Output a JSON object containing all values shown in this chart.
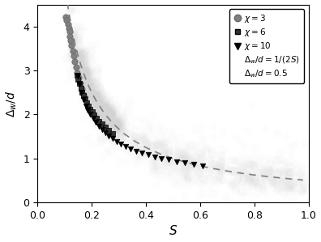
{
  "xlabel": "S",
  "ylabel": "$\\Delta_w/d$",
  "xlim": [
    0,
    1.0
  ],
  "ylim": [
    0,
    4.5
  ],
  "xticks": [
    0,
    0.2,
    0.4,
    0.6,
    0.8,
    1.0
  ],
  "yticks": [
    0,
    1,
    2,
    3,
    4
  ],
  "chi3_S": [
    0.105,
    0.108,
    0.112,
    0.115,
    0.118,
    0.12,
    0.123,
    0.126,
    0.13,
    0.134,
    0.138,
    0.142,
    0.147,
    0.152,
    0.157,
    0.163,
    0.169
  ],
  "chi3_Y": [
    4.22,
    4.14,
    4.05,
    3.96,
    3.88,
    3.78,
    3.68,
    3.57,
    3.45,
    3.33,
    3.2,
    3.08,
    2.95,
    2.83,
    2.7,
    2.57,
    2.45
  ],
  "chi6_S": [
    0.145,
    0.15,
    0.155,
    0.16,
    0.165,
    0.17,
    0.176,
    0.182,
    0.188,
    0.195,
    0.202,
    0.21,
    0.218,
    0.228,
    0.238,
    0.25,
    0.263,
    0.278
  ],
  "chi6_Y": [
    2.9,
    2.8,
    2.7,
    2.6,
    2.51,
    2.43,
    2.35,
    2.27,
    2.2,
    2.12,
    2.06,
    1.99,
    1.92,
    1.85,
    1.78,
    1.71,
    1.64,
    1.57
  ],
  "chi10_S": [
    0.148,
    0.155,
    0.162,
    0.17,
    0.178,
    0.186,
    0.195,
    0.205,
    0.215,
    0.226,
    0.238,
    0.25,
    0.263,
    0.277,
    0.292,
    0.308,
    0.325,
    0.344,
    0.364,
    0.385,
    0.408,
    0.432,
    0.458,
    0.485,
    0.514,
    0.545,
    0.578,
    0.61
  ],
  "chi10_Y": [
    2.88,
    2.68,
    2.5,
    2.34,
    2.2,
    2.1,
    2.0,
    1.91,
    1.82,
    1.74,
    1.66,
    1.59,
    1.52,
    1.45,
    1.39,
    1.33,
    1.27,
    1.22,
    1.17,
    1.12,
    1.08,
    1.04,
    1.0,
    0.97,
    0.93,
    0.9,
    0.87,
    0.84
  ],
  "curve_S": [
    0.11,
    0.12,
    0.13,
    0.14,
    0.15,
    0.16,
    0.17,
    0.18,
    0.19,
    0.2,
    0.22,
    0.25,
    0.28,
    0.32,
    0.36,
    0.4,
    0.45,
    0.5,
    0.55,
    0.6,
    0.65,
    0.7,
    0.75,
    0.8,
    0.85,
    0.9,
    0.95,
    0.98
  ]
}
